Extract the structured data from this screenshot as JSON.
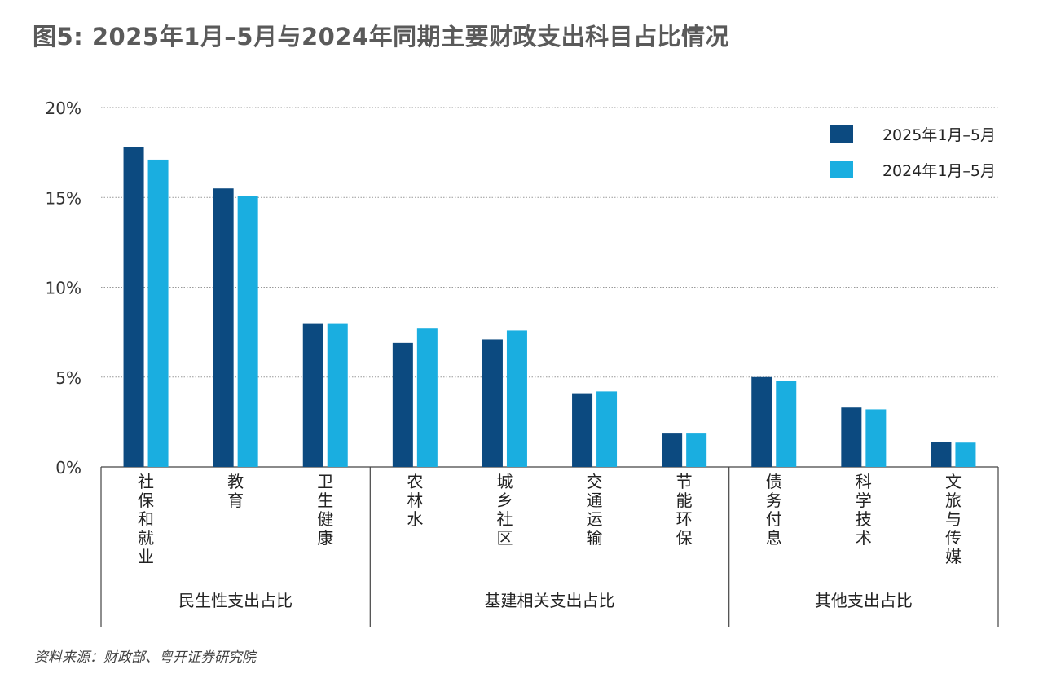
{
  "title": "图5: 2025年1月–5月与2024年同期主要财政支出科目占比情况",
  "source": "资料来源：财政部、粤开证券研究院",
  "colors": {
    "series_2025": "#0c4a80",
    "series_2024": "#1aaee0",
    "grid": "#999999",
    "axis": "#444444"
  },
  "chart_data": {
    "type": "bar",
    "title": "图5: 2025年1月–5月与2024年同期主要财政支出科目占比情况",
    "xlabel": "",
    "ylabel": "",
    "ylim": [
      0,
      20
    ],
    "yticks": [
      0,
      5,
      10,
      15,
      20
    ],
    "ytick_labels": [
      "0%",
      "5%",
      "10%",
      "15%",
      "20%"
    ],
    "grid": true,
    "legend_position": "top-right",
    "categories": [
      "社保和就业",
      "教育",
      "卫生健康",
      "农林水",
      "城乡社区",
      "交通运输",
      "节能环保",
      "债务付息",
      "科学技术",
      "文旅与传媒"
    ],
    "groups": [
      {
        "label": "民生性支出占比",
        "categories": [
          "社保和就业",
          "教育",
          "卫生健康"
        ]
      },
      {
        "label": "基建相关支出占比",
        "categories": [
          "农林水",
          "城乡社区",
          "交通运输",
          "节能环保"
        ]
      },
      {
        "label": "其他支出占比",
        "categories": [
          "债务付息",
          "科学技术",
          "文旅与传媒"
        ]
      }
    ],
    "series": [
      {
        "name": "2025年1月–5月",
        "values": [
          17.8,
          15.5,
          8.0,
          6.9,
          7.1,
          4.1,
          1.9,
          5.0,
          3.3,
          1.4
        ]
      },
      {
        "name": "2024年1月–5月",
        "values": [
          17.1,
          15.1,
          8.0,
          7.7,
          7.6,
          4.2,
          1.9,
          4.8,
          3.2,
          1.35
        ]
      }
    ]
  }
}
